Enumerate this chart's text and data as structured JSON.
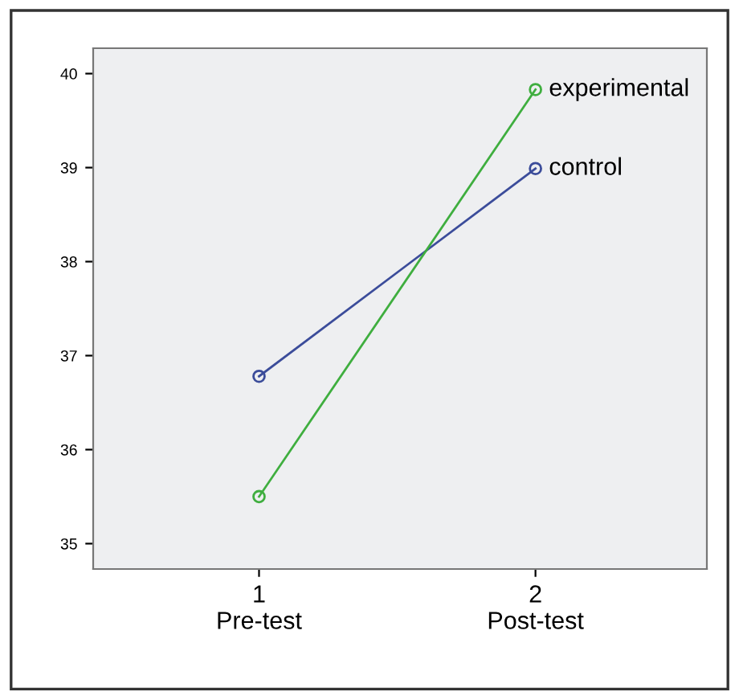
{
  "chart_data": {
    "type": "line",
    "x": [
      1,
      2
    ],
    "series": [
      {
        "name": "control",
        "color": "#3b4c9a",
        "values": [
          36.78,
          38.99
        ]
      },
      {
        "name": "experimental",
        "color": "#3fae3f",
        "values": [
          35.5,
          39.83
        ]
      }
    ],
    "xlim": [
      0.4,
      2.62
    ],
    "xticks": [
      {
        "value": 1,
        "label": "1\nPre-test"
      },
      {
        "value": 2,
        "label": "2\nPost-test"
      }
    ],
    "ylim": [
      34.73,
      40.27
    ],
    "yticks": [
      35,
      36,
      37,
      38,
      39,
      40
    ],
    "marker": "circle",
    "line_style": "solid",
    "grid": false,
    "legend": false
  }
}
